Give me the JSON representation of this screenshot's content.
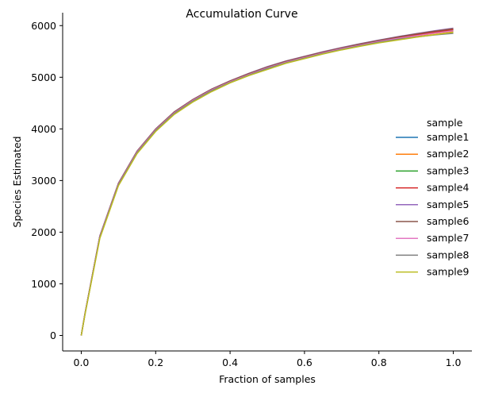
{
  "chart_data": {
    "type": "line",
    "title": "Accumulation Curve",
    "xlabel": "Fraction of samples",
    "ylabel": "Species Estimated",
    "xlim": [
      -0.05,
      1.05
    ],
    "ylim": [
      -300,
      6250
    ],
    "xticks": [
      0.0,
      0.2,
      0.4,
      0.6,
      0.8,
      1.0
    ],
    "xtick_labels": [
      "0.0",
      "0.2",
      "0.4",
      "0.6",
      "0.8",
      "1.0"
    ],
    "yticks": [
      0,
      1000,
      2000,
      3000,
      4000,
      5000,
      6000
    ],
    "ytick_labels": [
      "0",
      "1000",
      "2000",
      "3000",
      "4000",
      "5000",
      "6000"
    ],
    "grid": false,
    "legend": {
      "title": "sample",
      "position": "right"
    },
    "x": [
      0,
      0.01,
      0.05,
      0.1,
      0.15,
      0.2,
      0.25,
      0.3,
      0.35,
      0.4,
      0.45,
      0.5,
      0.55,
      0.6,
      0.65,
      0.7,
      0.75,
      0.8,
      0.85,
      0.9,
      0.95,
      1.0
    ],
    "series": [
      {
        "name": "sample1",
        "color": "#1f77b4",
        "values": [
          0,
          420,
          1920,
          2940,
          3560,
          3990,
          4320,
          4560,
          4760,
          4920,
          5060,
          5190,
          5300,
          5390,
          5480,
          5560,
          5630,
          5700,
          5760,
          5820,
          5870,
          5920
        ]
      },
      {
        "name": "sample2",
        "color": "#ff7f0e",
        "values": [
          0,
          415,
          1910,
          2930,
          3550,
          3980,
          4310,
          4550,
          4750,
          4910,
          5050,
          5180,
          5290,
          5380,
          5470,
          5550,
          5620,
          5690,
          5750,
          5800,
          5850,
          5890
        ]
      },
      {
        "name": "sample3",
        "color": "#2ca02c",
        "values": [
          0,
          418,
          1915,
          2935,
          3555,
          3985,
          4315,
          4555,
          4755,
          4915,
          5055,
          5185,
          5295,
          5385,
          5475,
          5555,
          5625,
          5695,
          5755,
          5810,
          5860,
          5905
        ]
      },
      {
        "name": "sample4",
        "color": "#d62728",
        "values": [
          0,
          420,
          1920,
          2945,
          3565,
          3995,
          4325,
          4565,
          4765,
          4925,
          5065,
          5195,
          5305,
          5395,
          5485,
          5565,
          5635,
          5705,
          5765,
          5825,
          5875,
          5925
        ]
      },
      {
        "name": "sample5",
        "color": "#9467bd",
        "values": [
          0,
          425,
          1930,
          2950,
          3570,
          4000,
          4330,
          4570,
          4770,
          4930,
          5075,
          5205,
          5315,
          5405,
          5495,
          5575,
          5650,
          5720,
          5785,
          5845,
          5900,
          5950
        ]
      },
      {
        "name": "sample6",
        "color": "#8c564b",
        "values": [
          0,
          422,
          1925,
          2948,
          3568,
          3998,
          4328,
          4568,
          4768,
          4928,
          5070,
          5200,
          5310,
          5400,
          5490,
          5570,
          5645,
          5715,
          5780,
          5838,
          5892,
          5940
        ]
      },
      {
        "name": "sample7",
        "color": "#e377c2",
        "values": [
          0,
          416,
          1912,
          2932,
          3552,
          3982,
          4312,
          4552,
          4752,
          4912,
          5052,
          5182,
          5292,
          5382,
          5472,
          5552,
          5622,
          5692,
          5752,
          5805,
          5855,
          5900
        ]
      },
      {
        "name": "sample8",
        "color": "#7f7f7f",
        "values": [
          0,
          410,
          1900,
          2920,
          3540,
          3970,
          4300,
          4540,
          4740,
          4900,
          5040,
          5170,
          5280,
          5370,
          5460,
          5540,
          5610,
          5680,
          5735,
          5780,
          5820,
          5850
        ]
      },
      {
        "name": "sample9",
        "color": "#bcbd22",
        "values": [
          0,
          405,
          1880,
          2900,
          3520,
          3950,
          4280,
          4520,
          4720,
          4890,
          5030,
          5150,
          5270,
          5360,
          5450,
          5530,
          5600,
          5665,
          5720,
          5775,
          5825,
          5870
        ]
      }
    ]
  }
}
